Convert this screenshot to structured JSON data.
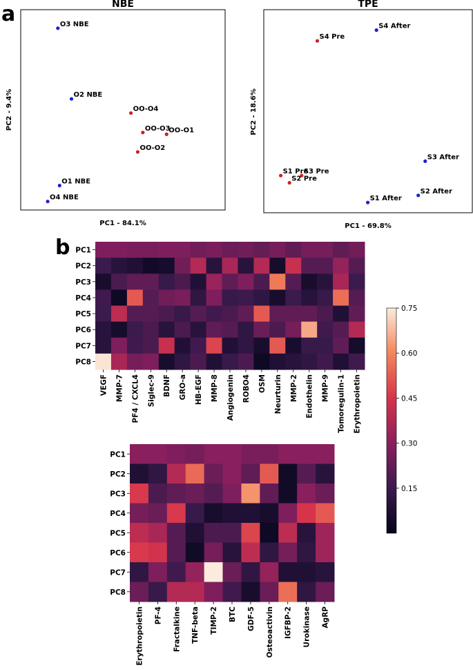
{
  "panel_labels": {
    "a": "a",
    "b": "b"
  },
  "colors": {
    "blue": "#1f1fd0",
    "red": "#d01f1f",
    "frame": "#000000"
  },
  "chart_data": [
    {
      "type": "scatter",
      "title": "NBE",
      "xlabel": "PC1 - 84.1%",
      "ylabel": "PC2 - 9.4%",
      "xlim": [
        0,
        100
      ],
      "ylim": [
        0,
        100
      ],
      "points": [
        {
          "label": "O3 NBE",
          "x": 17,
          "y": 95,
          "group": "blue"
        },
        {
          "label": "O2 NBE",
          "x": 25,
          "y": 55,
          "group": "blue"
        },
        {
          "label": "OO-O4",
          "x": 60,
          "y": 47,
          "group": "red"
        },
        {
          "label": "OO-O3",
          "x": 67,
          "y": 36,
          "group": "red"
        },
        {
          "label": "OO-O1",
          "x": 81,
          "y": 35,
          "group": "red"
        },
        {
          "label": "OO-O2",
          "x": 64,
          "y": 25,
          "group": "red"
        },
        {
          "label": "O1 NBE",
          "x": 18,
          "y": 6,
          "group": "blue"
        },
        {
          "label": "O4 NBE",
          "x": 11,
          "y": -3,
          "group": "blue"
        }
      ]
    },
    {
      "type": "scatter",
      "title": "TPE",
      "xlabel": "PC1 - 69.8%",
      "ylabel": "PC2 - 18.6%",
      "xlim": [
        0,
        100
      ],
      "ylim": [
        0,
        100
      ],
      "points": [
        {
          "label": "S4 After",
          "x": 60,
          "y": 94,
          "group": "blue"
        },
        {
          "label": "S4 Pre",
          "x": 26,
          "y": 88,
          "group": "red"
        },
        {
          "label": "S3 After",
          "x": 88,
          "y": 21,
          "group": "blue"
        },
        {
          "label": "S1 Pre",
          "x": 5,
          "y": 13,
          "group": "red"
        },
        {
          "label": "S3 Pre",
          "x": 17,
          "y": 13,
          "group": "red"
        },
        {
          "label": "S2 Pre",
          "x": 10,
          "y": 9,
          "group": "red"
        },
        {
          "label": "S2 After",
          "x": 84,
          "y": 2,
          "group": "blue"
        },
        {
          "label": "S1 After",
          "x": 55,
          "y": -2,
          "group": "blue"
        }
      ]
    },
    {
      "type": "heatmap",
      "rows": [
        "PC1",
        "PC2",
        "PC3",
        "PC4",
        "PC5",
        "PC6",
        "PC7",
        "PC8"
      ],
      "columns": [
        "VEGF",
        "MMP-7",
        "PF4 / CXCL4",
        "Siglec-9",
        "BDNF",
        "GRO-a",
        "HB-EGF",
        "MMP-8",
        "Angiogenin",
        "ROBO4",
        "OSM",
        "Neurturin",
        "MMP-2",
        "Endothelin",
        "MMP-9",
        "Tomoregulin-1",
        "Erythropoietin"
      ],
      "values": [
        [
          0.28,
          0.28,
          0.27,
          0.27,
          0.28,
          0.28,
          0.25,
          0.27,
          0.24,
          0.25,
          0.23,
          0.26,
          0.22,
          0.26,
          0.26,
          0.22,
          0.25
        ],
        [
          0.15,
          0.1,
          0.08,
          0.04,
          0.05,
          0.25,
          0.38,
          0.1,
          0.36,
          0.1,
          0.38,
          0.05,
          0.42,
          0.2,
          0.2,
          0.32,
          0.2
        ],
        [
          0.06,
          0.18,
          0.22,
          0.22,
          0.14,
          0.18,
          0.08,
          0.33,
          0.22,
          0.28,
          0.18,
          0.58,
          0.2,
          0.06,
          0.1,
          0.36,
          0.15
        ],
        [
          0.16,
          0.03,
          0.52,
          0.2,
          0.25,
          0.27,
          0.12,
          0.28,
          0.14,
          0.15,
          0.12,
          0.06,
          0.15,
          0.1,
          0.14,
          0.56,
          0.2
        ],
        [
          0.15,
          0.4,
          0.2,
          0.2,
          0.18,
          0.14,
          0.2,
          0.16,
          0.18,
          0.22,
          0.52,
          0.22,
          0.22,
          0.22,
          0.18,
          0.08,
          0.22
        ],
        [
          0.1,
          0.05,
          0.15,
          0.18,
          0.1,
          0.18,
          0.1,
          0.22,
          0.2,
          0.12,
          0.24,
          0.18,
          0.26,
          0.65,
          0.16,
          0.2,
          0.38
        ],
        [
          0.1,
          0.28,
          0.16,
          0.18,
          0.42,
          0.08,
          0.16,
          0.48,
          0.08,
          0.12,
          0.06,
          0.52,
          0.06,
          0.14,
          0.14,
          0.22,
          0.05
        ],
        [
          0.74,
          0.36,
          0.26,
          0.28,
          0.06,
          0.12,
          0.18,
          0.08,
          0.14,
          0.18,
          0.03,
          0.08,
          0.1,
          0.12,
          0.16,
          0.08,
          0.16
        ]
      ]
    },
    {
      "type": "heatmap",
      "rows": [
        "PC1",
        "PC2",
        "PC3",
        "PC4",
        "PC5",
        "PC6",
        "PC7",
        "PC8"
      ],
      "columns": [
        "Erythropoietin",
        "PF-4",
        "Fractalkine",
        "TNF-beta",
        "TIMP-2",
        "BTC",
        "GDF-5",
        "Osteoactivin",
        "IGFBP-2",
        "Urokinase",
        "AgRP"
      ],
      "values": [
        [
          0.3,
          0.3,
          0.28,
          0.26,
          0.3,
          0.3,
          0.27,
          0.27,
          0.3,
          0.3,
          0.3
        ],
        [
          0.08,
          0.12,
          0.38,
          0.55,
          0.24,
          0.3,
          0.22,
          0.52,
          0.04,
          0.2,
          0.1
        ],
        [
          0.46,
          0.18,
          0.22,
          0.24,
          0.2,
          0.28,
          0.62,
          0.22,
          0.04,
          0.3,
          0.24
        ],
        [
          0.26,
          0.24,
          0.46,
          0.14,
          0.06,
          0.08,
          0.08,
          0.06,
          0.28,
          0.45,
          0.52
        ],
        [
          0.4,
          0.36,
          0.2,
          0.08,
          0.18,
          0.18,
          0.48,
          0.03,
          0.4,
          0.1,
          0.34
        ],
        [
          0.46,
          0.44,
          0.2,
          0.04,
          0.26,
          0.1,
          0.4,
          0.12,
          0.26,
          0.12,
          0.34
        ],
        [
          0.12,
          0.28,
          0.16,
          0.32,
          0.75,
          0.24,
          0.12,
          0.32,
          0.08,
          0.08,
          0.1
        ],
        [
          0.24,
          0.14,
          0.38,
          0.38,
          0.28,
          0.16,
          0.06,
          0.24,
          0.56,
          0.12,
          0.24
        ]
      ]
    }
  ],
  "colorbar": {
    "min": 0.0,
    "max": 0.75,
    "ticks": [
      "0.75",
      "0.60",
      "0.45",
      "0.30",
      "0.15"
    ],
    "tick_values": [
      0.75,
      0.6,
      0.45,
      0.3,
      0.15
    ]
  }
}
